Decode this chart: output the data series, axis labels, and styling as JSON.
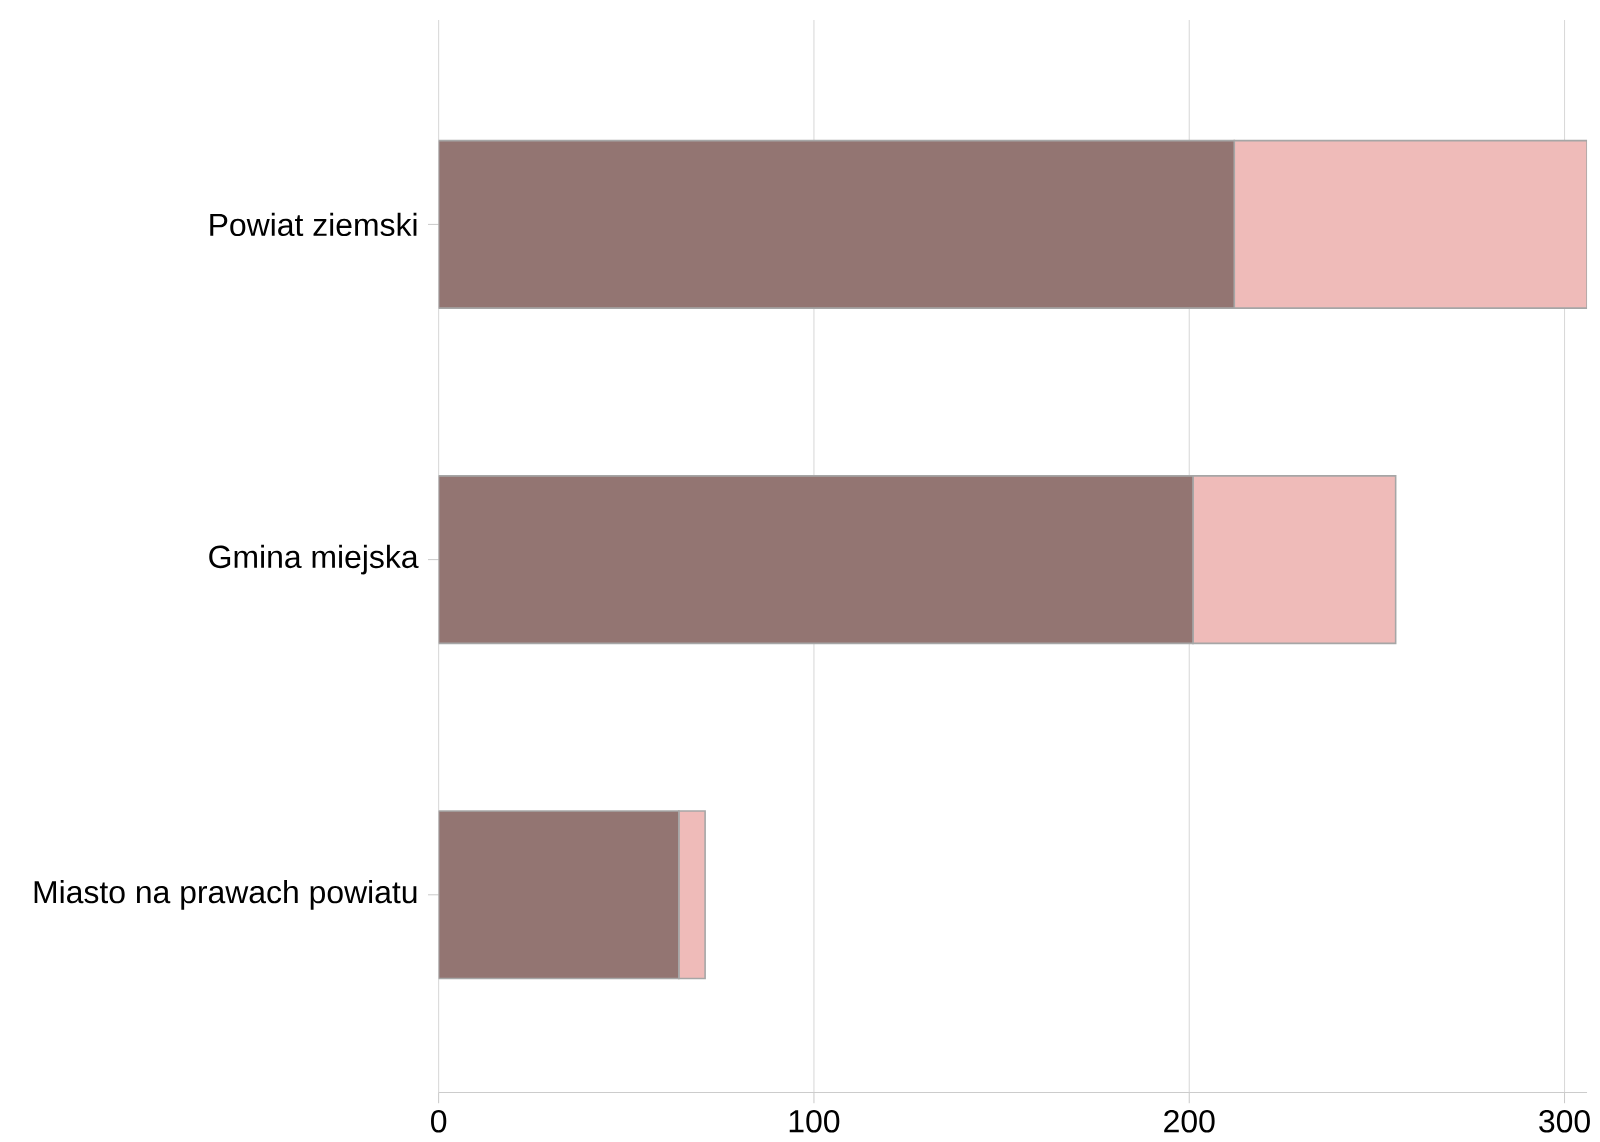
{
  "chart_data": {
    "type": "bar",
    "orientation": "horizontal",
    "stacked": true,
    "categories": [
      "Powiat ziemski",
      "Gmina miejska",
      "Miasto na prawach powiatu"
    ],
    "series": [
      {
        "color": "#937572",
        "values": [
          212,
          201,
          64
        ]
      },
      {
        "color": "#efbbb9",
        "values": [
          94,
          54,
          7
        ]
      }
    ],
    "xlim": [
      0,
      306
    ],
    "xticks": [
      0,
      100,
      200,
      300
    ],
    "grid": "x"
  }
}
